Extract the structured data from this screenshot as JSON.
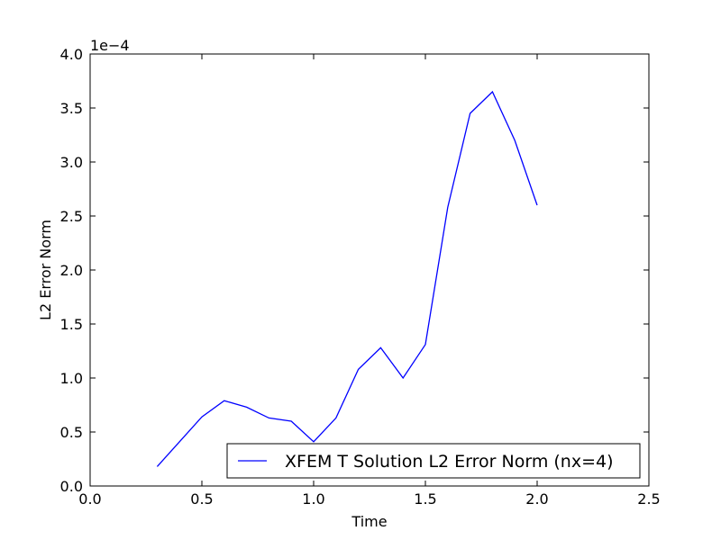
{
  "chart_data": {
    "type": "line",
    "xlabel": "Time",
    "ylabel": "L2 Error Norm",
    "y_offset_text": "1e−4",
    "xlim": [
      0.0,
      2.5
    ],
    "ylim": [
      0.0,
      4.0
    ],
    "x_ticks": [
      0.0,
      0.5,
      1.0,
      1.5,
      2.0,
      2.5
    ],
    "x_tick_labels": [
      "0.0",
      "0.5",
      "1.0",
      "1.5",
      "2.0",
      "2.5"
    ],
    "y_ticks": [
      0.0,
      0.5,
      1.0,
      1.5,
      2.0,
      2.5,
      3.0,
      3.5,
      4.0
    ],
    "y_tick_labels": [
      "0.0",
      "0.5",
      "1.0",
      "1.5",
      "2.0",
      "2.5",
      "3.0",
      "3.5",
      "4.0"
    ],
    "grid": false,
    "legend_position": "lower-right",
    "series": [
      {
        "name": "XFEM T Solution L2 Error Norm (nx=4)",
        "color": "#0000ff",
        "x": [
          0.3,
          0.4,
          0.5,
          0.6,
          0.7,
          0.8,
          0.9,
          1.0,
          1.1,
          1.2,
          1.3,
          1.4,
          1.5,
          1.6,
          1.7,
          1.8,
          1.9,
          2.0
        ],
        "y": [
          0.18,
          0.41,
          0.64,
          0.79,
          0.73,
          0.63,
          0.6,
          0.41,
          0.63,
          1.08,
          1.28,
          1.0,
          1.31,
          2.58,
          3.45,
          3.65,
          3.2,
          2.6
        ]
      }
    ]
  }
}
